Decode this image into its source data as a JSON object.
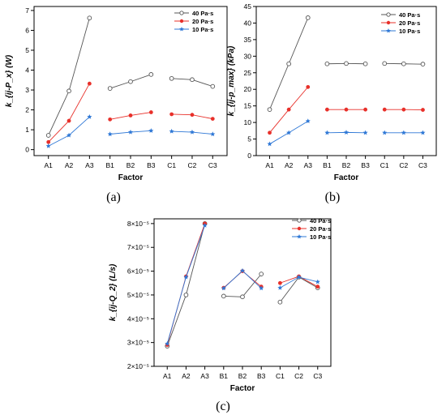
{
  "chart_data": [
    {
      "type": "line",
      "panel_label": "(a)",
      "xlabel": "Factor",
      "ylabel": "k_{ij-P_x} (W)",
      "categories": [
        "A1",
        "A2",
        "A3",
        "B1",
        "B2",
        "B3",
        "C1",
        "C2",
        "C3"
      ],
      "groups": [
        [
          0,
          1,
          2
        ],
        [
          3,
          4,
          5
        ],
        [
          6,
          7,
          8
        ]
      ],
      "ylim": [
        -0.3,
        7.2
      ],
      "yticks": [
        0,
        1,
        2,
        3,
        4,
        5,
        6,
        7
      ],
      "yticklabels": [
        "0",
        "1",
        "2",
        "3",
        "4",
        "5",
        "6",
        "7"
      ],
      "legend_position": "top-right",
      "series": [
        {
          "name": "40 Pa·s",
          "color": "#555555",
          "marker": "circle",
          "values": [
            0.72,
            2.95,
            6.62,
            3.08,
            3.42,
            3.78,
            3.58,
            3.52,
            3.18
          ]
        },
        {
          "name": "20 Pa·s",
          "color": "#e8302a",
          "marker": "circle",
          "values": [
            0.38,
            1.45,
            3.32,
            1.52,
            1.72,
            1.88,
            1.78,
            1.75,
            1.55
          ]
        },
        {
          "name": "10 Pa·s",
          "color": "#2f78d6",
          "marker": "star",
          "values": [
            0.18,
            0.72,
            1.65,
            0.78,
            0.88,
            0.95,
            0.92,
            0.88,
            0.78
          ]
        }
      ]
    },
    {
      "type": "line",
      "panel_label": "(b)",
      "xlabel": "Factor",
      "ylabel": "k_{ij-p_max} (kPa)",
      "categories": [
        "A1",
        "A2",
        "A3",
        "B1",
        "B2",
        "B3",
        "C1",
        "C2",
        "C3"
      ],
      "groups": [
        [
          0,
          1,
          2
        ],
        [
          3,
          4,
          5
        ],
        [
          6,
          7,
          8
        ]
      ],
      "ylim": [
        0,
        45
      ],
      "yticks": [
        0,
        5,
        10,
        15,
        20,
        25,
        30,
        35,
        40,
        45
      ],
      "yticklabels": [
        "0",
        "5",
        "10",
        "15",
        "20",
        "25",
        "30",
        "35",
        "40",
        "45"
      ],
      "legend_position": "top-right",
      "series": [
        {
          "name": "40 Pa·s",
          "color": "#555555",
          "marker": "circle",
          "values": [
            13.9,
            27.7,
            41.6,
            27.7,
            27.8,
            27.7,
            27.8,
            27.7,
            27.6
          ]
        },
        {
          "name": "20 Pa·s",
          "color": "#e8302a",
          "marker": "circle",
          "values": [
            6.9,
            13.9,
            20.7,
            13.9,
            13.9,
            13.9,
            13.9,
            13.9,
            13.8
          ]
        },
        {
          "name": "10 Pa·s",
          "color": "#2f78d6",
          "marker": "star",
          "values": [
            3.5,
            6.9,
            10.4,
            6.9,
            7.0,
            6.9,
            6.9,
            6.9,
            6.9
          ]
        }
      ]
    },
    {
      "type": "line",
      "panel_label": "(c)",
      "xlabel": "Factor",
      "ylabel": "k_{ij-Q_2} (L/s)",
      "categories": [
        "A1",
        "A2",
        "A3",
        "B1",
        "B2",
        "B3",
        "C1",
        "C2",
        "C3"
      ],
      "groups": [
        [
          0,
          1,
          2
        ],
        [
          3,
          4,
          5
        ],
        [
          6,
          7,
          8
        ]
      ],
      "ylim": [
        2e-05,
        8.2e-05
      ],
      "yticks": [
        2e-05,
        3e-05,
        4e-05,
        5e-05,
        6e-05,
        7e-05,
        8e-05
      ],
      "yticklabels": [
        "2×10⁻⁵",
        "3×10⁻⁵",
        "4×10⁻⁵",
        "5×10⁻⁵",
        "6×10⁻⁵",
        "7×10⁻⁵",
        "8×10⁻⁵"
      ],
      "legend_position": "top-right",
      "series": [
        {
          "name": "40 Pa·s",
          "color": "#555555",
          "marker": "circle",
          "values": [
            2.85e-05,
            5e-05,
            8e-05,
            4.95e-05,
            4.92e-05,
            5.88e-05,
            4.7e-05,
            5.75e-05,
            5.3e-05
          ]
        },
        {
          "name": "20 Pa·s",
          "color": "#e8302a",
          "marker": "circle",
          "values": [
            2.9e-05,
            5.78e-05,
            8e-05,
            5.3e-05,
            6e-05,
            5.35e-05,
            5.5e-05,
            5.78e-05,
            5.35e-05
          ]
        },
        {
          "name": "10 Pa·s",
          "color": "#2f78d6",
          "marker": "star",
          "values": [
            2.95e-05,
            5.75e-05,
            7.92e-05,
            5.28e-05,
            6.02e-05,
            5.28e-05,
            5.3e-05,
            5.75e-05,
            5.55e-05
          ]
        }
      ]
    }
  ]
}
